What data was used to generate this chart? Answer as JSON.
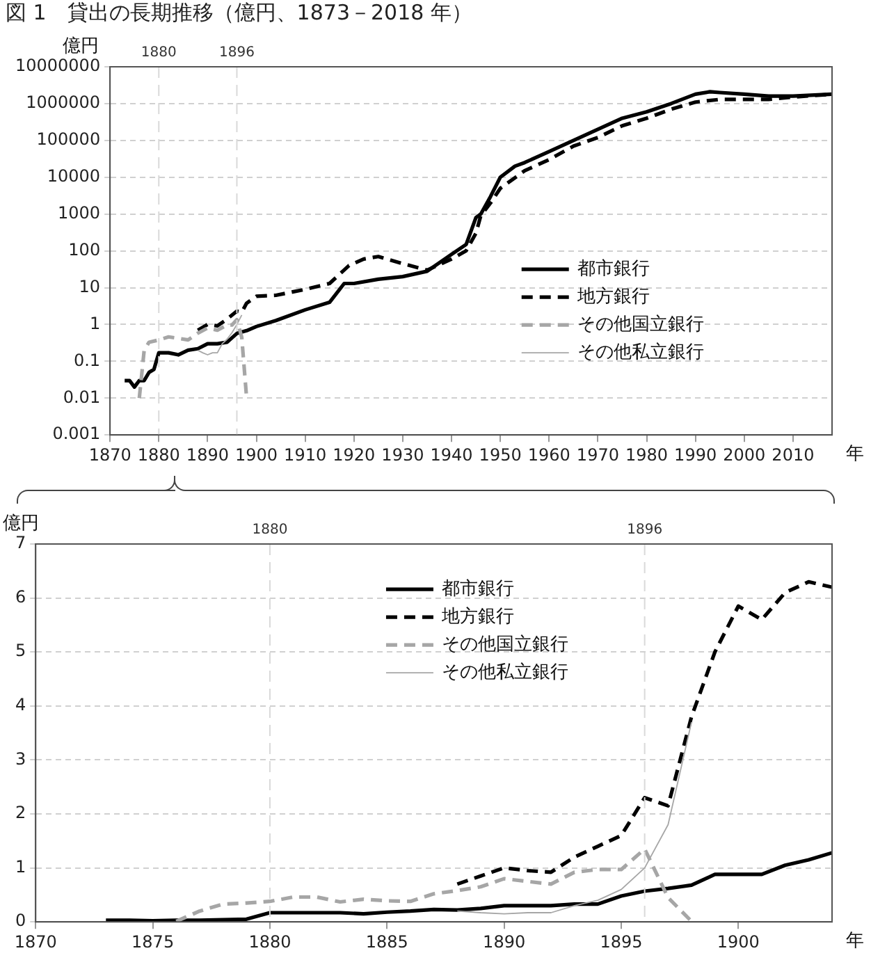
{
  "chart_data": [
    {
      "type": "line",
      "title": "図 1　貸出の長期推移（億円、1873－2018 年）",
      "ylabel": "億円",
      "xlabel": "年",
      "log": "y",
      "grid": "y",
      "legend": "right",
      "marker": "none",
      "xlim": [
        1870,
        2018
      ],
      "xticks": [
        1870,
        1880,
        1890,
        1900,
        1910,
        1920,
        1930,
        1940,
        1950,
        1960,
        1970,
        1980,
        1990,
        2000,
        2010
      ],
      "ylim": [
        0.001,
        10000000
      ],
      "yticks": [
        0.001,
        0.01,
        0.1,
        1,
        10,
        100,
        1000,
        10000,
        100000,
        1000000,
        10000000
      ],
      "ref_lines": [
        {
          "axis": "x",
          "value": 1880,
          "label": "1880",
          "color": "#d9d9d9",
          "line_style": "dashed"
        },
        {
          "axis": "x",
          "value": 1896,
          "label": "1896",
          "color": "#d9d9d9",
          "line_style": "dashed"
        }
      ],
      "series": [
        {
          "name": "都市銀行",
          "color": "#000000",
          "line_style": "solid",
          "x": [
            1873,
            1874,
            1875,
            1876,
            1877,
            1878,
            1879,
            1880,
            1882,
            1884,
            1886,
            1888,
            1890,
            1892,
            1894,
            1896,
            1898,
            1900,
            1904,
            1910,
            1915,
            1918,
            1920,
            1925,
            1930,
            1935,
            1940,
            1943,
            1945,
            1946,
            1948,
            1950,
            1953,
            1955,
            1960,
            1965,
            1970,
            1975,
            1980,
            1985,
            1990,
            1993,
            1995,
            2000,
            2005,
            2010,
            2018
          ],
          "values": [
            0.03,
            0.03,
            0.02,
            0.03,
            0.03,
            0.05,
            0.06,
            0.17,
            0.17,
            0.15,
            0.2,
            0.22,
            0.3,
            0.3,
            0.33,
            0.57,
            0.68,
            0.88,
            1.28,
            2.5,
            4,
            13,
            13,
            17,
            20,
            28,
            80,
            150,
            800,
            1000,
            3000,
            10000,
            20000,
            25000,
            50000,
            100000,
            200000,
            400000,
            600000,
            1000000,
            1800000,
            2100000,
            2000000,
            1800000,
            1600000,
            1600000,
            1800000
          ]
        },
        {
          "name": "地方銀行",
          "color": "#000000",
          "line_style": "dashed",
          "x": [
            1888,
            1890,
            1892,
            1894,
            1896,
            1897,
            1898,
            1900,
            1904,
            1910,
            1915,
            1919,
            1922,
            1925,
            1930,
            1935,
            1940,
            1943,
            1945,
            1946,
            1948,
            1950,
            1955,
            1960,
            1965,
            1970,
            1975,
            1980,
            1985,
            1990,
            1995,
            2000,
            2005,
            2010,
            2018
          ],
          "values": [
            0.7,
            1,
            0.92,
            1.4,
            2.3,
            2.15,
            3.8,
            5.85,
            6.2,
            9,
            13,
            40,
            60,
            70,
            45,
            30,
            60,
            100,
            300,
            900,
            2000,
            5000,
            15000,
            30000,
            70000,
            120000,
            250000,
            400000,
            700000,
            1100000,
            1300000,
            1300000,
            1300000,
            1500000,
            1800000
          ]
        },
        {
          "name": "その他国立銀行",
          "color": "#a6a6a6",
          "line_style": "dashed",
          "x": [
            1876,
            1877,
            1878,
            1880,
            1882,
            1884,
            1886,
            1888,
            1890,
            1892,
            1894,
            1895,
            1896,
            1897,
            1898
          ],
          "values": [
            0.01,
            0.2,
            0.33,
            0.38,
            0.46,
            0.42,
            0.38,
            0.58,
            0.8,
            0.7,
            0.97,
            0.97,
            1.35,
            0.45,
            0.01
          ]
        },
        {
          "name": "その他私立銀行",
          "color": "#a6a6a6",
          "line_style": "solid",
          "x": [
            1888,
            1889,
            1890,
            1891,
            1892,
            1893,
            1894,
            1895,
            1896,
            1897
          ],
          "values": [
            0.2,
            0.17,
            0.15,
            0.17,
            0.17,
            0.3,
            0.4,
            0.6,
            1,
            1.8
          ]
        }
      ]
    },
    {
      "type": "line",
      "ylabel": "億円",
      "xlabel": "年",
      "grid": "y",
      "legend": "top",
      "marker": "none",
      "xlim": [
        1870,
        1904
      ],
      "xticks": [
        1870,
        1875,
        1880,
        1885,
        1890,
        1895,
        1900
      ],
      "ylim": [
        0,
        7
      ],
      "yticks": [
        0,
        1,
        2,
        3,
        4,
        5,
        6,
        7
      ],
      "ref_lines": [
        {
          "axis": "x",
          "value": 1880,
          "label": "1880",
          "color": "#d9d9d9",
          "line_style": "dashed"
        },
        {
          "axis": "x",
          "value": 1896,
          "label": "1896",
          "color": "#d9d9d9",
          "line_style": "dashed"
        }
      ],
      "series": [
        {
          "name": "都市銀行",
          "color": "#000000",
          "line_style": "solid",
          "x": [
            1873,
            1874,
            1875,
            1876,
            1877,
            1878,
            1879,
            1880,
            1881,
            1882,
            1883,
            1884,
            1885,
            1886,
            1887,
            1888,
            1889,
            1890,
            1891,
            1892,
            1893,
            1894,
            1895,
            1896,
            1897,
            1898,
            1899,
            1900,
            1901,
            1902,
            1903,
            1904
          ],
          "values": [
            0.03,
            0.03,
            0.02,
            0.03,
            0.03,
            0.04,
            0.05,
            0.17,
            0.17,
            0.17,
            0.17,
            0.15,
            0.18,
            0.2,
            0.23,
            0.22,
            0.25,
            0.3,
            0.3,
            0.3,
            0.33,
            0.33,
            0.48,
            0.57,
            0.62,
            0.68,
            0.88,
            0.88,
            0.88,
            1.05,
            1.15,
            1.28
          ]
        },
        {
          "name": "地方銀行",
          "color": "#000000",
          "line_style": "dashed",
          "x": [
            1888,
            1889,
            1890,
            1891,
            1892,
            1893,
            1894,
            1895,
            1896,
            1897,
            1898,
            1899,
            1900,
            1901,
            1902,
            1903,
            1904
          ],
          "values": [
            0.7,
            0.85,
            1,
            0.95,
            0.92,
            1.2,
            1.4,
            1.6,
            2.3,
            2.15,
            3.8,
            5,
            5.85,
            5.6,
            6.1,
            6.3,
            6.2
          ]
        },
        {
          "name": "その他国立銀行",
          "color": "#a6a6a6",
          "line_style": "dashed",
          "x": [
            1876,
            1877,
            1878,
            1879,
            1880,
            1881,
            1882,
            1883,
            1884,
            1885,
            1886,
            1887,
            1888,
            1889,
            1890,
            1891,
            1892,
            1893,
            1894,
            1895,
            1896,
            1897,
            1898
          ],
          "values": [
            0.01,
            0.2,
            0.33,
            0.35,
            0.38,
            0.46,
            0.46,
            0.37,
            0.42,
            0.39,
            0.38,
            0.52,
            0.58,
            0.65,
            0.8,
            0.75,
            0.7,
            0.92,
            0.97,
            0.97,
            1.35,
            0.45,
            0.01
          ]
        },
        {
          "name": "その他私立銀行",
          "color": "#a6a6a6",
          "line_style": "solid",
          "x": [
            1888,
            1889,
            1890,
            1891,
            1892,
            1893,
            1894,
            1895,
            1896,
            1897,
            1898
          ],
          "values": [
            0.2,
            0.17,
            0.15,
            0.17,
            0.17,
            0.3,
            0.4,
            0.6,
            1,
            1.8,
            3.7
          ]
        }
      ]
    }
  ]
}
